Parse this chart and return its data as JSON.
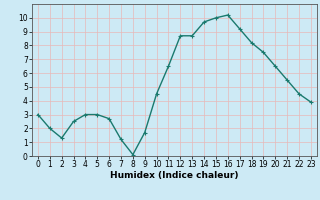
{
  "x": [
    0,
    1,
    2,
    3,
    4,
    5,
    6,
    7,
    8,
    9,
    10,
    11,
    12,
    13,
    14,
    15,
    16,
    17,
    18,
    19,
    20,
    21,
    22,
    23
  ],
  "y": [
    3,
    2,
    1.3,
    2.5,
    3,
    3,
    2.7,
    1.2,
    0.1,
    1.7,
    4.5,
    6.5,
    8.7,
    8.7,
    9.7,
    10,
    10.2,
    9.2,
    8.2,
    7.5,
    6.5,
    5.5,
    4.5,
    3.9
  ],
  "line_color": "#1a7a6e",
  "marker": "+",
  "marker_color": "#1a7a6e",
  "bg_color": "#cdeaf5",
  "grid_color": "#e8b8b8",
  "xlabel": "Humidex (Indice chaleur)",
  "xlim": [
    -0.5,
    23.5
  ],
  "ylim": [
    0,
    11
  ],
  "yticks": [
    0,
    1,
    2,
    3,
    4,
    5,
    6,
    7,
    8,
    9,
    10
  ],
  "xticks": [
    0,
    1,
    2,
    3,
    4,
    5,
    6,
    7,
    8,
    9,
    10,
    11,
    12,
    13,
    14,
    15,
    16,
    17,
    18,
    19,
    20,
    21,
    22,
    23
  ],
  "xlabel_fontsize": 6.5,
  "tick_fontsize": 5.5,
  "linewidth": 1.0,
  "markersize": 3.5
}
